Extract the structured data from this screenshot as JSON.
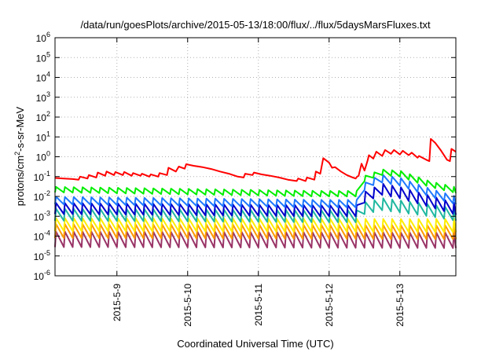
{
  "chart_data": {
    "type": "line",
    "title": "/data/run/goesPlots/archive/2015-05-13/18:00/flux/../flux/5daysMarsFluxes.txt",
    "xlabel": "Coordinated Universal Time (UTC)",
    "ylabel": {
      "pre": "protons/cm",
      "sup": "2",
      "post": "-s-sr-MeV"
    },
    "yscale": "log",
    "ylim": [
      1e-06,
      1000000.0
    ],
    "xlim": [
      "2015-05-08T03:00",
      "2015-05-13T19:00"
    ],
    "grid": true,
    "yticks": [
      {
        "value": 1000000.0,
        "base": "10",
        "exp": "6"
      },
      {
        "value": 100000.0,
        "base": "10",
        "exp": "5"
      },
      {
        "value": 10000.0,
        "base": "10",
        "exp": "4"
      },
      {
        "value": 1000.0,
        "base": "10",
        "exp": "3"
      },
      {
        "value": 100.0,
        "base": "10",
        "exp": "2"
      },
      {
        "value": 10.0,
        "base": "10",
        "exp": "1"
      },
      {
        "value": 1.0,
        "base": "10",
        "exp": "0"
      },
      {
        "value": 0.1,
        "base": "10",
        "exp": "-1"
      },
      {
        "value": 0.01,
        "base": "10",
        "exp": "-2"
      },
      {
        "value": 0.001,
        "base": "10",
        "exp": "-3"
      },
      {
        "value": 0.0001,
        "base": "10",
        "exp": "-4"
      },
      {
        "value": 1e-05,
        "base": "10",
        "exp": "-5"
      },
      {
        "value": 1e-06,
        "base": "10",
        "exp": "-6"
      }
    ],
    "xticks": [
      {
        "time": "2015-05-09T00:00",
        "label": "2015-5-9"
      },
      {
        "time": "2015-05-10T00:00",
        "label": "2015-5-10"
      },
      {
        "time": "2015-05-11T00:00",
        "label": "2015-5-11"
      },
      {
        "time": "2015-05-12T00:00",
        "label": "2015-5-12"
      },
      {
        "time": "2015-05-13T00:00",
        "label": "2015-5-13"
      }
    ],
    "series": [
      {
        "color": "#ff0000",
        "points": [
          [
            "2015-05-08T03:00",
            0.085
          ],
          [
            "2015-05-08T06:00",
            0.08
          ],
          [
            "2015-05-08T09:00",
            0.075
          ],
          [
            "2015-05-08T11:00",
            0.07
          ],
          [
            "2015-05-08T11:30",
            0.1
          ],
          [
            "2015-05-08T14:00",
            0.08
          ],
          [
            "2015-05-08T14:30",
            0.12
          ],
          [
            "2015-05-08T17:00",
            0.09
          ],
          [
            "2015-05-08T17:30",
            0.16
          ],
          [
            "2015-05-08T20:00",
            0.11
          ],
          [
            "2015-05-08T20:30",
            0.18
          ],
          [
            "2015-05-08T23:00",
            0.12
          ],
          [
            "2015-05-08T23:30",
            0.17
          ],
          [
            "2015-05-09T02:00",
            0.12
          ],
          [
            "2015-05-09T02:30",
            0.17
          ],
          [
            "2015-05-09T05:00",
            0.11
          ],
          [
            "2015-05-09T05:30",
            0.15
          ],
          [
            "2015-05-09T08:00",
            0.11
          ],
          [
            "2015-05-09T08:30",
            0.14
          ],
          [
            "2015-05-09T11:00",
            0.1
          ],
          [
            "2015-05-09T11:30",
            0.13
          ],
          [
            "2015-05-09T14:00",
            0.1
          ],
          [
            "2015-05-09T14:30",
            0.15
          ],
          [
            "2015-05-09T17:00",
            0.12
          ],
          [
            "2015-05-09T17:30",
            0.28
          ],
          [
            "2015-05-09T20:00",
            0.18
          ],
          [
            "2015-05-09T21:00",
            0.32
          ],
          [
            "2015-05-09T23:00",
            0.25
          ],
          [
            "2015-05-09T23:30",
            0.42
          ],
          [
            "2015-05-10T02:00",
            0.35
          ],
          [
            "2015-05-10T05:00",
            0.3
          ],
          [
            "2015-05-10T08:00",
            0.24
          ],
          [
            "2015-05-10T11:00",
            0.18
          ],
          [
            "2015-05-10T14:00",
            0.14
          ],
          [
            "2015-05-10T17:00",
            0.1
          ],
          [
            "2015-05-10T19:00",
            0.09
          ],
          [
            "2015-05-10T19:30",
            0.14
          ],
          [
            "2015-05-10T22:00",
            0.12
          ],
          [
            "2015-05-10T22:30",
            0.16
          ],
          [
            "2015-05-11T01:00",
            0.13
          ],
          [
            "2015-05-11T04:00",
            0.11
          ],
          [
            "2015-05-11T07:00",
            0.09
          ],
          [
            "2015-05-11T10:00",
            0.07
          ],
          [
            "2015-05-11T13:00",
            0.06
          ],
          [
            "2015-05-11T13:30",
            0.08
          ],
          [
            "2015-05-11T16:00",
            0.06
          ],
          [
            "2015-05-11T16:30",
            0.09
          ],
          [
            "2015-05-11T19:00",
            0.07
          ],
          [
            "2015-05-11T19:30",
            0.18
          ],
          [
            "2015-05-11T21:00",
            0.14
          ],
          [
            "2015-05-11T22:00",
            0.85
          ],
          [
            "2015-05-12T00:00",
            0.5
          ],
          [
            "2015-05-12T01:00",
            0.28
          ],
          [
            "2015-05-12T02:00",
            0.3
          ],
          [
            "2015-05-12T04:00",
            0.18
          ],
          [
            "2015-05-12T06:00",
            0.12
          ],
          [
            "2015-05-12T08:00",
            0.09
          ],
          [
            "2015-05-12T09:00",
            0.08
          ],
          [
            "2015-05-12T09:30",
            0.1
          ],
          [
            "2015-05-12T10:00",
            0.11
          ],
          [
            "2015-05-12T11:00",
            0.45
          ],
          [
            "2015-05-12T12:00",
            0.2
          ],
          [
            "2015-05-12T13:00",
            0.6
          ],
          [
            "2015-05-12T13:30",
            1.2
          ],
          [
            "2015-05-12T15:00",
            0.8
          ],
          [
            "2015-05-12T16:00",
            1.8
          ],
          [
            "2015-05-12T18:00",
            1.1
          ],
          [
            "2015-05-12T19:00",
            2.2
          ],
          [
            "2015-05-12T21:00",
            1.4
          ],
          [
            "2015-05-12T22:00",
            2.2
          ],
          [
            "2015-05-13T00:00",
            1.3
          ],
          [
            "2015-05-13T01:00",
            2.0
          ],
          [
            "2015-05-13T03:00",
            1.2
          ],
          [
            "2015-05-13T04:00",
            1.6
          ],
          [
            "2015-05-13T06:00",
            0.9
          ],
          [
            "2015-05-13T06:30",
            1.1
          ],
          [
            "2015-05-13T09:00",
            0.7
          ],
          [
            "2015-05-13T10:00",
            0.6
          ],
          [
            "2015-05-13T10:30",
            8.0
          ],
          [
            "2015-05-13T12:00",
            5.0
          ],
          [
            "2015-05-13T14:00",
            2.0
          ],
          [
            "2015-05-13T16:00",
            0.7
          ],
          [
            "2015-05-13T17:00",
            0.6
          ],
          [
            "2015-05-13T17:30",
            2.5
          ],
          [
            "2015-05-13T19:00",
            1.8
          ]
        ]
      },
      {
        "color": "#00ee00",
        "shape": "sawtooth",
        "base": [
          [
            "2015-05-08T03:00",
            0.016
          ],
          [
            "2015-05-11T20:00",
            0.01
          ],
          [
            "2015-05-12T10:00",
            0.01
          ],
          [
            "2015-05-12T11:00",
            0.05
          ],
          [
            "2015-05-12T13:00",
            0.07
          ],
          [
            "2015-05-12T18:00",
            0.12
          ],
          [
            "2015-05-13T00:00",
            0.1
          ],
          [
            "2015-05-13T10:00",
            0.03
          ],
          [
            "2015-05-13T19:00",
            0.015
          ]
        ],
        "amp": 1.9
      },
      {
        "color": "#1e78ff",
        "shape": "sawtooth",
        "base": [
          [
            "2015-05-08T03:00",
            0.004
          ],
          [
            "2015-05-11T20:00",
            0.0028
          ],
          [
            "2015-05-12T10:00",
            0.0028
          ],
          [
            "2015-05-12T11:00",
            0.015
          ],
          [
            "2015-05-12T13:00",
            0.03
          ],
          [
            "2015-05-12T18:00",
            0.05
          ],
          [
            "2015-05-13T00:00",
            0.035
          ],
          [
            "2015-05-13T10:00",
            0.01
          ],
          [
            "2015-05-13T19:00",
            0.004
          ]
        ],
        "amp": 2.4
      },
      {
        "color": "#0000cc",
        "shape": "sawtooth",
        "base": [
          [
            "2015-05-08T03:00",
            0.0013
          ],
          [
            "2015-05-11T20:00",
            0.001
          ],
          [
            "2015-05-12T10:00",
            0.001
          ],
          [
            "2015-05-12T11:00",
            0.004
          ],
          [
            "2015-05-12T13:00",
            0.006
          ],
          [
            "2015-05-12T18:00",
            0.012
          ],
          [
            "2015-05-13T00:00",
            0.008
          ],
          [
            "2015-05-13T10:00",
            0.003
          ],
          [
            "2015-05-13T19:00",
            0.0012
          ]
        ],
        "amp": 3.6
      },
      {
        "color": "#20b8a0",
        "shape": "sawtooth",
        "base": [
          [
            "2015-05-08T03:00",
            0.0006
          ],
          [
            "2015-05-11T20:00",
            0.0005
          ],
          [
            "2015-05-12T10:00",
            0.0005
          ],
          [
            "2015-05-12T11:00",
            0.0012
          ],
          [
            "2015-05-12T18:00",
            0.002
          ],
          [
            "2015-05-13T10:00",
            0.001
          ],
          [
            "2015-05-13T19:00",
            0.0006
          ]
        ],
        "amp": 4.0
      },
      {
        "color": "#ffee00",
        "shape": "sawtooth",
        "base": [
          [
            "2015-05-08T03:00",
            0.00018
          ],
          [
            "2015-05-13T19:00",
            0.00016
          ]
        ],
        "amp": 4.5
      },
      {
        "color": "#ff9900",
        "shape": "sawtooth",
        "base": [
          [
            "2015-05-08T03:00",
            8e-05
          ],
          [
            "2015-05-13T19:00",
            7e-05
          ]
        ],
        "amp": 5.0
      },
      {
        "color": "#993366",
        "shape": "sawtooth",
        "base": [
          [
            "2015-05-08T03:00",
            2.8e-05
          ],
          [
            "2015-05-13T19:00",
            2.5e-05
          ]
        ],
        "amp": 6.0
      }
    ],
    "sawtooth_period_hours": 3
  }
}
